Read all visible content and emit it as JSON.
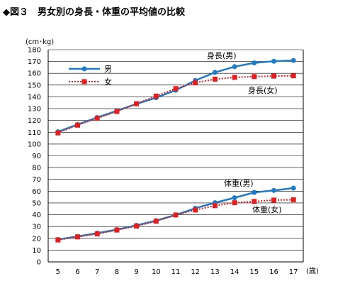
{
  "figure_title": "◆図３　男女別の身長・体重の平均値の比較",
  "chart_data": {
    "type": "line",
    "title": "◆図３　男女別の身長・体重の平均値の比較",
    "ylabel": "(cm･kg)",
    "xlabel": "(歳)",
    "x": [
      5,
      6,
      7,
      8,
      9,
      10,
      11,
      12,
      13,
      14,
      15,
      16,
      17
    ],
    "ylim": [
      0,
      180
    ],
    "ytick_step": 10,
    "grid": "horizontal",
    "legend": {
      "placement": "top-left",
      "entries": [
        "男",
        "女"
      ]
    },
    "series": [
      {
        "name": "男",
        "metric": "身長",
        "color": "#1f7bc4",
        "marker": "circle",
        "line": "solid",
        "values": [
          110.4,
          116.5,
          122.5,
          128.2,
          134.0,
          139.3,
          145.6,
          153.9,
          160.7,
          165.6,
          168.8,
          170.2,
          170.8
        ]
      },
      {
        "name": "女",
        "metric": "身長",
        "color": "#e02020",
        "marker": "square",
        "line": "dotted",
        "values": [
          109.4,
          116.0,
          121.8,
          127.6,
          134.2,
          140.6,
          147.0,
          152.0,
          155.0,
          156.5,
          157.2,
          157.6,
          157.9
        ]
      },
      {
        "name": "男",
        "metric": "体重",
        "color": "#1f7bc4",
        "marker": "circle",
        "line": "solid",
        "values": [
          19.0,
          21.6,
          24.4,
          27.4,
          31.0,
          35.0,
          39.8,
          45.5,
          50.2,
          54.4,
          58.9,
          60.6,
          62.6
        ]
      },
      {
        "name": "女",
        "metric": "体重",
        "color": "#e02020",
        "marker": "square",
        "line": "dotted",
        "values": [
          18.6,
          21.2,
          23.8,
          27.0,
          30.4,
          34.5,
          39.8,
          44.0,
          47.7,
          50.2,
          51.3,
          52.4,
          52.7
        ]
      }
    ],
    "annotations": [
      "身長(男)",
      "身長(女)",
      "体重(男)",
      "体重(女)"
    ]
  }
}
